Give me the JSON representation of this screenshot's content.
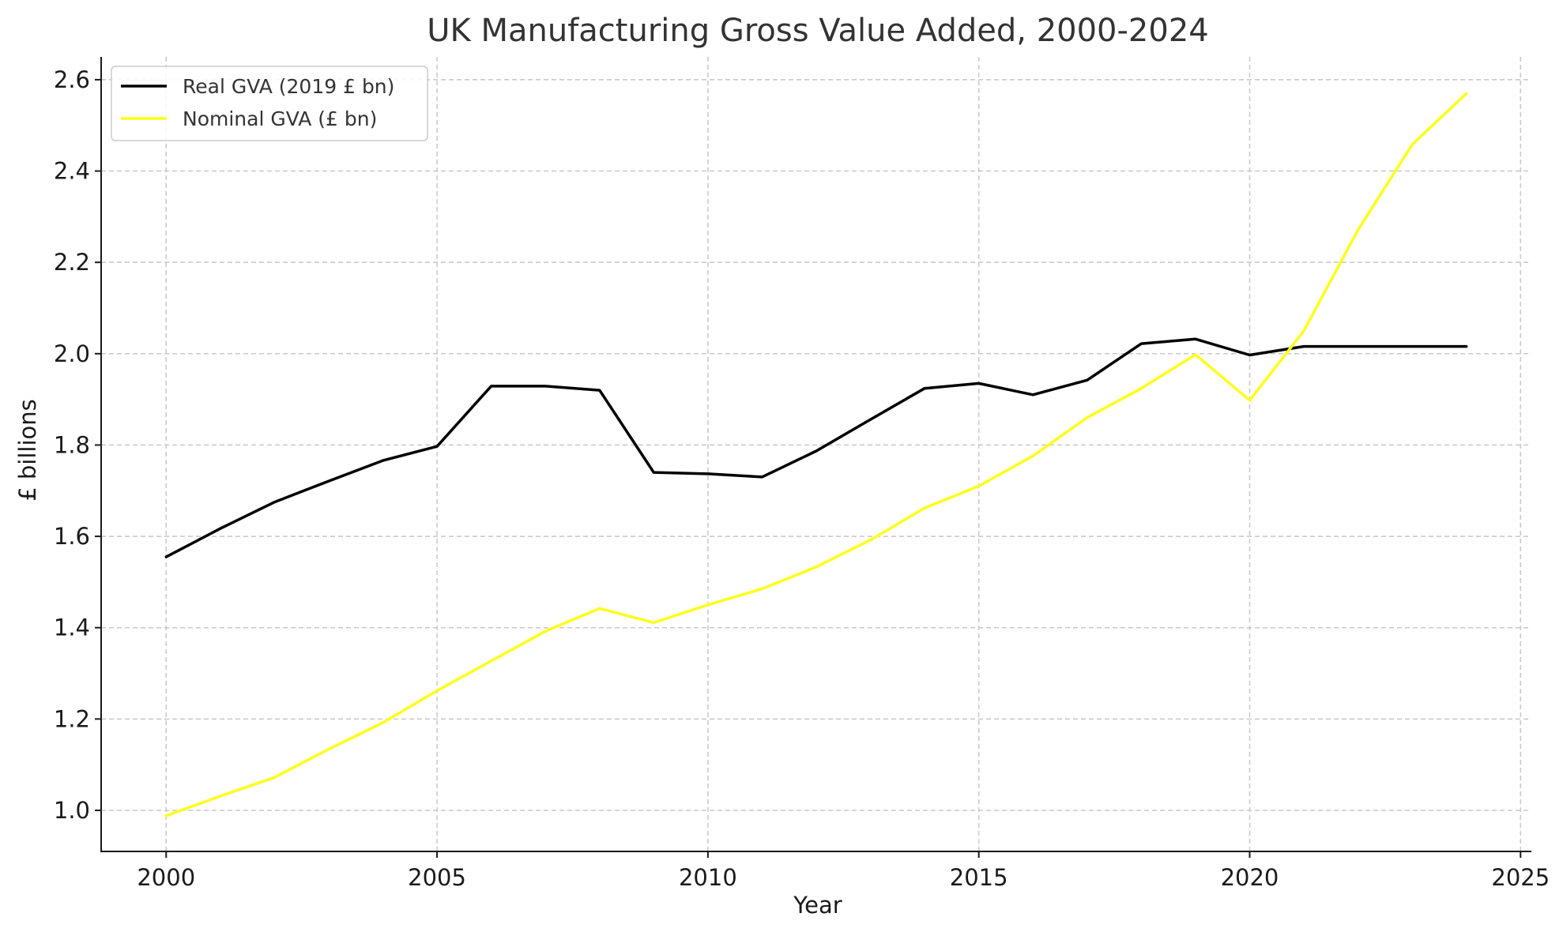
{
  "chart_data": {
    "type": "line",
    "title": "UK Manufacturing Gross Value Added, 2000-2024",
    "xlabel": "Year",
    "ylabel": "£ billions",
    "xlim": [
      1998.8,
      2025.2
    ],
    "ylim": [
      0.91,
      2.65
    ],
    "xticks": [
      2000,
      2005,
      2010,
      2015,
      2020,
      2025
    ],
    "yticks": [
      1.0,
      1.2,
      1.4,
      1.6,
      1.8,
      2.0,
      2.2,
      2.4,
      2.6
    ],
    "grid": true,
    "legend_position": "top-left",
    "x": [
      2000,
      2001,
      2002,
      2003,
      2004,
      2005,
      2006,
      2007,
      2008,
      2009,
      2010,
      2011,
      2012,
      2013,
      2014,
      2015,
      2016,
      2017,
      2018,
      2019,
      2020,
      2021,
      2022,
      2023,
      2024
    ],
    "series": [
      {
        "name": "Real GVA (2019 £ bn)",
        "color": "#000000",
        "values": [
          1.555,
          1.617,
          1.675,
          1.721,
          1.766,
          1.797,
          1.929,
          1.929,
          1.92,
          1.74,
          1.737,
          1.73,
          1.787,
          1.856,
          1.924,
          1.935,
          1.91,
          1.942,
          2.022,
          2.032,
          1.997,
          2.016,
          2.016,
          2.016,
          2.016
        ]
      },
      {
        "name": "Nominal GVA (£ bn)",
        "color": "#ffff1a",
        "values": [
          0.988,
          1.031,
          1.072,
          1.134,
          1.192,
          1.262,
          1.327,
          1.392,
          1.442,
          1.411,
          1.45,
          1.485,
          1.533,
          1.592,
          1.662,
          1.71,
          1.776,
          1.86,
          1.924,
          1.998,
          1.898,
          2.05,
          2.271,
          2.458,
          2.57
        ]
      }
    ]
  }
}
